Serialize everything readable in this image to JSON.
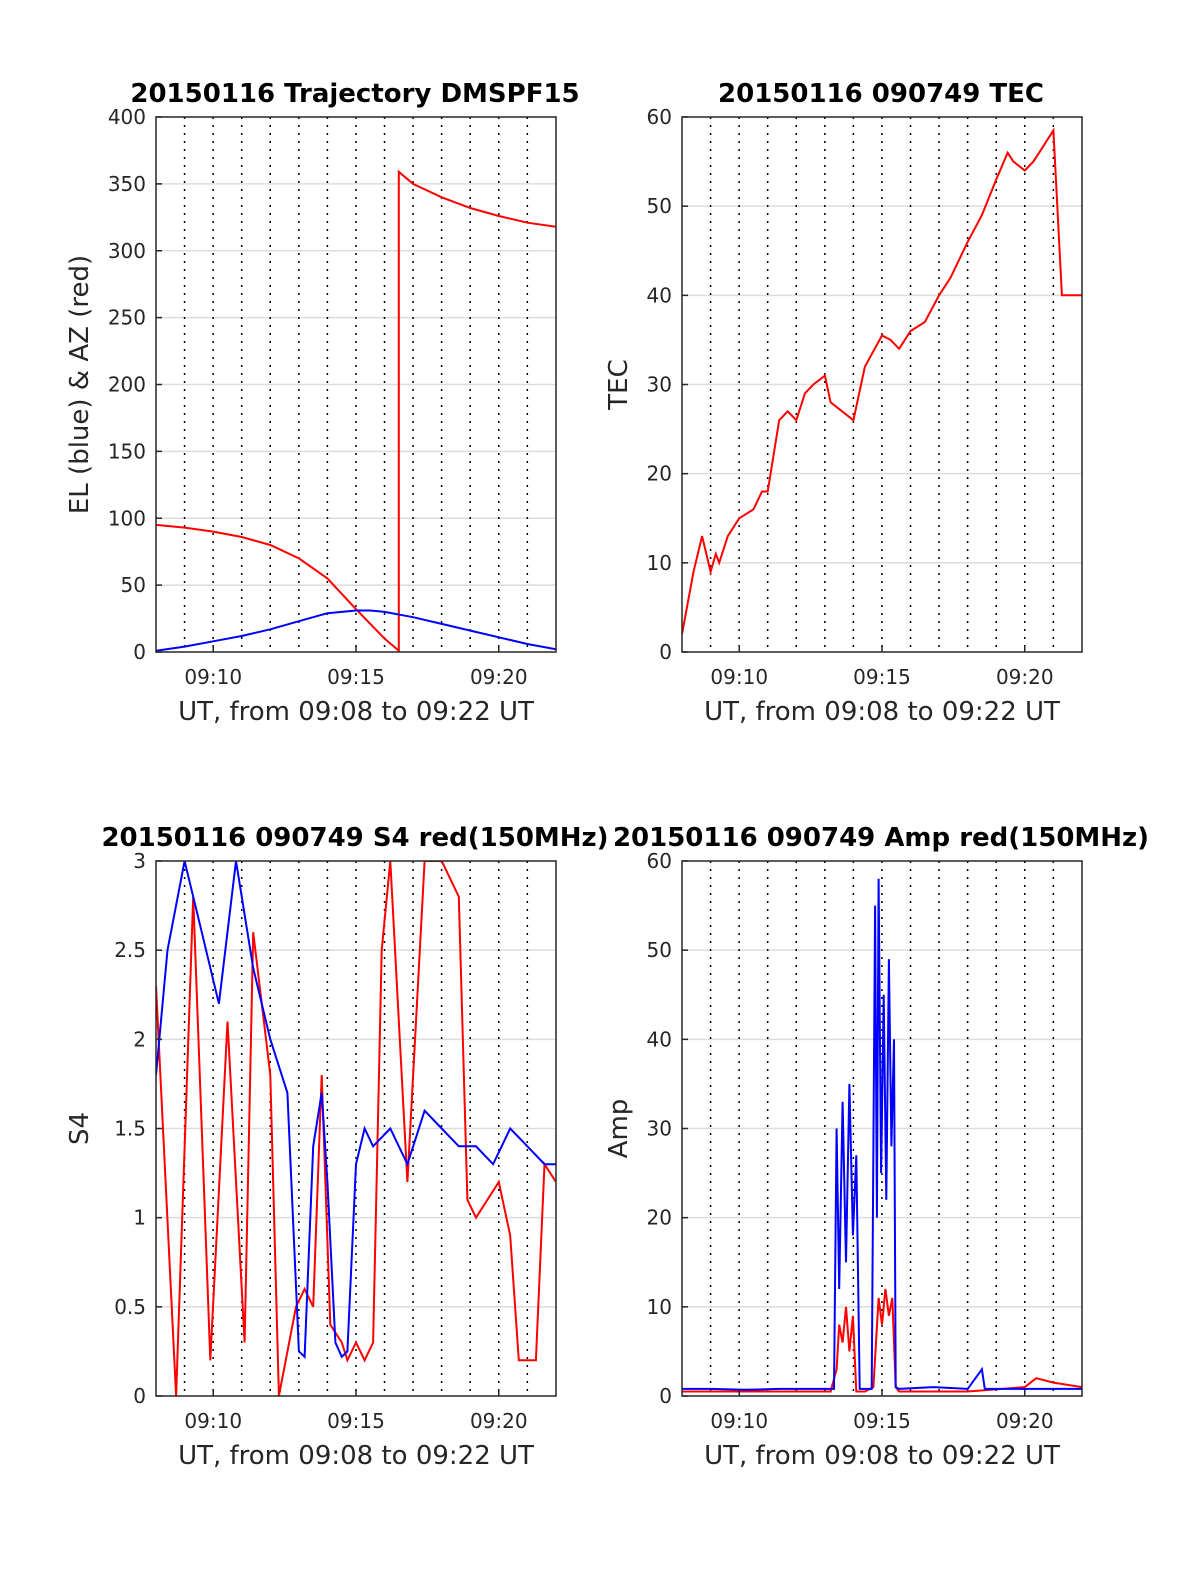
{
  "figure": {
    "background": "#ffffff"
  },
  "chart_data": [
    {
      "type": "line",
      "title": "20150116 Trajectory DMSPF15",
      "xlabel": "UT, from 09:08 to 09:22 UT",
      "ylabel": "EL (blue) & AZ (red)",
      "xlim": [
        9.1333,
        9.3667
      ],
      "ylim": [
        0,
        400
      ],
      "xticks": [
        9.1667,
        9.25,
        9.3333
      ],
      "xticklabels": [
        "09:10",
        "09:15",
        "09:20"
      ],
      "yticks": [
        0,
        50,
        100,
        150,
        200,
        250,
        300,
        350,
        400
      ],
      "yticklabels": [
        "0",
        "50",
        "100",
        "150",
        "200",
        "250",
        "300",
        "350",
        "400"
      ],
      "grid": "horizontal-solid, vertical-dotted",
      "series": [
        {
          "color": "#ff0000",
          "x": [
            9.1333,
            9.15,
            9.1667,
            9.1833,
            9.2,
            9.2167,
            9.2333,
            9.25,
            9.2667,
            9.275,
            9.275,
            9.2833,
            9.3,
            9.3167,
            9.3333,
            9.35,
            9.3667
          ],
          "y": [
            95,
            93,
            90,
            86,
            80,
            70,
            55,
            32,
            10,
            1,
            359,
            350,
            340,
            332,
            326,
            321,
            318
          ]
        },
        {
          "color": "#0000ff",
          "x": [
            9.1333,
            9.15,
            9.1667,
            9.1833,
            9.2,
            9.2167,
            9.2333,
            9.25,
            9.2583,
            9.2667,
            9.2833,
            9.3,
            9.3167,
            9.3333,
            9.35,
            9.3667
          ],
          "y": [
            1,
            4,
            8,
            12,
            17,
            23,
            29,
            31,
            31,
            30,
            26,
            21,
            16,
            11,
            6,
            2
          ]
        }
      ]
    },
    {
      "type": "line",
      "title": "20150116 090749 TEC",
      "xlabel": "UT, from 09:08 to 09:22 UT",
      "ylabel": "TEC",
      "xlim": [
        9.1333,
        9.3667
      ],
      "ylim": [
        0,
        60
      ],
      "xticks": [
        9.1667,
        9.25,
        9.3333
      ],
      "xticklabels": [
        "09:10",
        "09:15",
        "09:20"
      ],
      "yticks": [
        0,
        10,
        20,
        30,
        40,
        50,
        60
      ],
      "yticklabels": [
        "0",
        "10",
        "20",
        "30",
        "40",
        "50",
        "60"
      ],
      "grid": "horizontal-solid, vertical-dotted",
      "series": [
        {
          "color": "#ff0000",
          "x": [
            9.1333,
            9.14,
            9.145,
            9.15,
            9.153,
            9.155,
            9.16,
            9.1667,
            9.175,
            9.18,
            9.1833,
            9.19,
            9.195,
            9.2,
            9.205,
            9.21,
            9.2167,
            9.22,
            9.2333,
            9.24,
            9.25,
            9.255,
            9.26,
            9.2667,
            9.275,
            9.2833,
            9.29,
            9.3,
            9.3083,
            9.3167,
            9.3233,
            9.3267,
            9.3333,
            9.3383,
            9.3417,
            9.345,
            9.35,
            9.355,
            9.36,
            9.3667
          ],
          "y": [
            2,
            9,
            13,
            9,
            11,
            10,
            13,
            15,
            16,
            18,
            18,
            26,
            27,
            26,
            29,
            30,
            31,
            28,
            26,
            32,
            35.5,
            35,
            34,
            36,
            37,
            40,
            42,
            46,
            49,
            53,
            56,
            55,
            54,
            55,
            56,
            57,
            58.5,
            40,
            40,
            40
          ]
        }
      ]
    },
    {
      "type": "line",
      "title": "20150116 090749 S4 red(150MHz)",
      "xlabel": "UT, from 09:08 to 09:22 UT",
      "ylabel": "S4",
      "xlim": [
        9.1333,
        9.3667
      ],
      "ylim": [
        0,
        3
      ],
      "xticks": [
        9.1667,
        9.25,
        9.3333
      ],
      "xticklabels": [
        "09:10",
        "09:15",
        "09:20"
      ],
      "yticks": [
        0,
        0.5,
        1,
        1.5,
        2,
        2.5,
        3
      ],
      "yticklabels": [
        "0",
        "0.5",
        "1",
        "1.5",
        "2",
        "2.5",
        "3"
      ],
      "grid": "horizontal-solid, vertical-dotted",
      "series": [
        {
          "color": "#ff0000",
          "x": [
            9.1333,
            9.145,
            9.155,
            9.165,
            9.175,
            9.185,
            9.19,
            9.2,
            9.205,
            9.215,
            9.22,
            9.225,
            9.23,
            9.235,
            9.2417,
            9.245,
            9.25,
            9.255,
            9.26,
            9.265,
            9.27,
            9.28,
            9.29,
            9.3,
            9.31,
            9.315,
            9.32,
            9.3333,
            9.34,
            9.345,
            9.35,
            9.355,
            9.36,
            9.3667
          ],
          "y": [
            2.3,
            0,
            2.8,
            0.2,
            2.1,
            0.3,
            2.6,
            1.8,
            0,
            0.5,
            0.6,
            0.5,
            1.8,
            0.4,
            0.3,
            0.2,
            0.3,
            0.2,
            0.3,
            2.5,
            3,
            1.2,
            3,
            3,
            2.8,
            1.1,
            1.0,
            1.2,
            0.9,
            0.2,
            0.2,
            0.2,
            1.3,
            1.2
          ]
        },
        {
          "color": "#0000ff",
          "x": [
            9.1333,
            9.14,
            9.15,
            9.16,
            9.17,
            9.18,
            9.19,
            9.2,
            9.21,
            9.2167,
            9.22,
            9.225,
            9.23,
            9.2333,
            9.238,
            9.2417,
            9.245,
            9.25,
            9.255,
            9.26,
            9.27,
            9.28,
            9.29,
            9.3,
            9.31,
            9.32,
            9.33,
            9.34,
            9.35,
            9.36,
            9.3667
          ],
          "y": [
            1.8,
            2.5,
            3,
            2.6,
            2.2,
            3,
            2.4,
            2.0,
            1.7,
            0.25,
            0.22,
            1.4,
            1.7,
            1.2,
            0.3,
            0.22,
            0.25,
            1.3,
            1.5,
            1.4,
            1.5,
            1.3,
            1.6,
            1.5,
            1.4,
            1.4,
            1.3,
            1.5,
            1.4,
            1.3,
            1.3
          ]
        }
      ]
    },
    {
      "type": "line",
      "title": "20150116 090749 Amp red(150MHz)",
      "xlabel": "UT, from 09:08 to 09:22 UT",
      "ylabel": "Amp",
      "xlim": [
        9.1333,
        9.3667
      ],
      "ylim": [
        0,
        60
      ],
      "xticks": [
        9.1667,
        9.25,
        9.3333
      ],
      "xticklabels": [
        "09:10",
        "09:15",
        "09:20"
      ],
      "yticks": [
        0,
        10,
        20,
        30,
        40,
        50,
        60
      ],
      "yticklabels": [
        "0",
        "10",
        "20",
        "30",
        "40",
        "50",
        "60"
      ],
      "grid": "horizontal-solid, vertical-dotted",
      "series": [
        {
          "color": "#ff0000",
          "x": [
            9.1333,
            9.22,
            9.2235,
            9.225,
            9.227,
            9.229,
            9.231,
            9.233,
            9.235,
            9.24,
            9.245,
            9.248,
            9.25,
            9.252,
            9.254,
            9.256,
            9.258,
            9.26,
            9.3,
            9.3333,
            9.34,
            9.35,
            9.3667
          ],
          "y": [
            0.5,
            0.5,
            3,
            8,
            6,
            10,
            5,
            9,
            0.5,
            0.5,
            1,
            11,
            8,
            12,
            9,
            11,
            1,
            0.5,
            0.5,
            1.0,
            2.0,
            1.5,
            1.0
          ]
        },
        {
          "color": "#0000ff",
          "x": [
            9.1333,
            9.15,
            9.17,
            9.19,
            9.21,
            9.222,
            9.2235,
            9.225,
            9.227,
            9.229,
            9.231,
            9.233,
            9.235,
            9.237,
            9.24,
            9.244,
            9.246,
            9.247,
            9.248,
            9.2495,
            9.251,
            9.2525,
            9.254,
            9.2555,
            9.257,
            9.258,
            9.26,
            9.28,
            9.3,
            9.3083,
            9.31,
            9.3333,
            9.3667
          ],
          "y": [
            0.8,
            0.8,
            0.7,
            0.8,
            0.8,
            0.8,
            30,
            12,
            33,
            15,
            35,
            18,
            27,
            0.8,
            0.8,
            0.8,
            55,
            20,
            58,
            25,
            45,
            22,
            49,
            28,
            40,
            1,
            0.8,
            1.0,
            0.8,
            3,
            0.8,
            0.8,
            0.8
          ]
        }
      ]
    }
  ]
}
